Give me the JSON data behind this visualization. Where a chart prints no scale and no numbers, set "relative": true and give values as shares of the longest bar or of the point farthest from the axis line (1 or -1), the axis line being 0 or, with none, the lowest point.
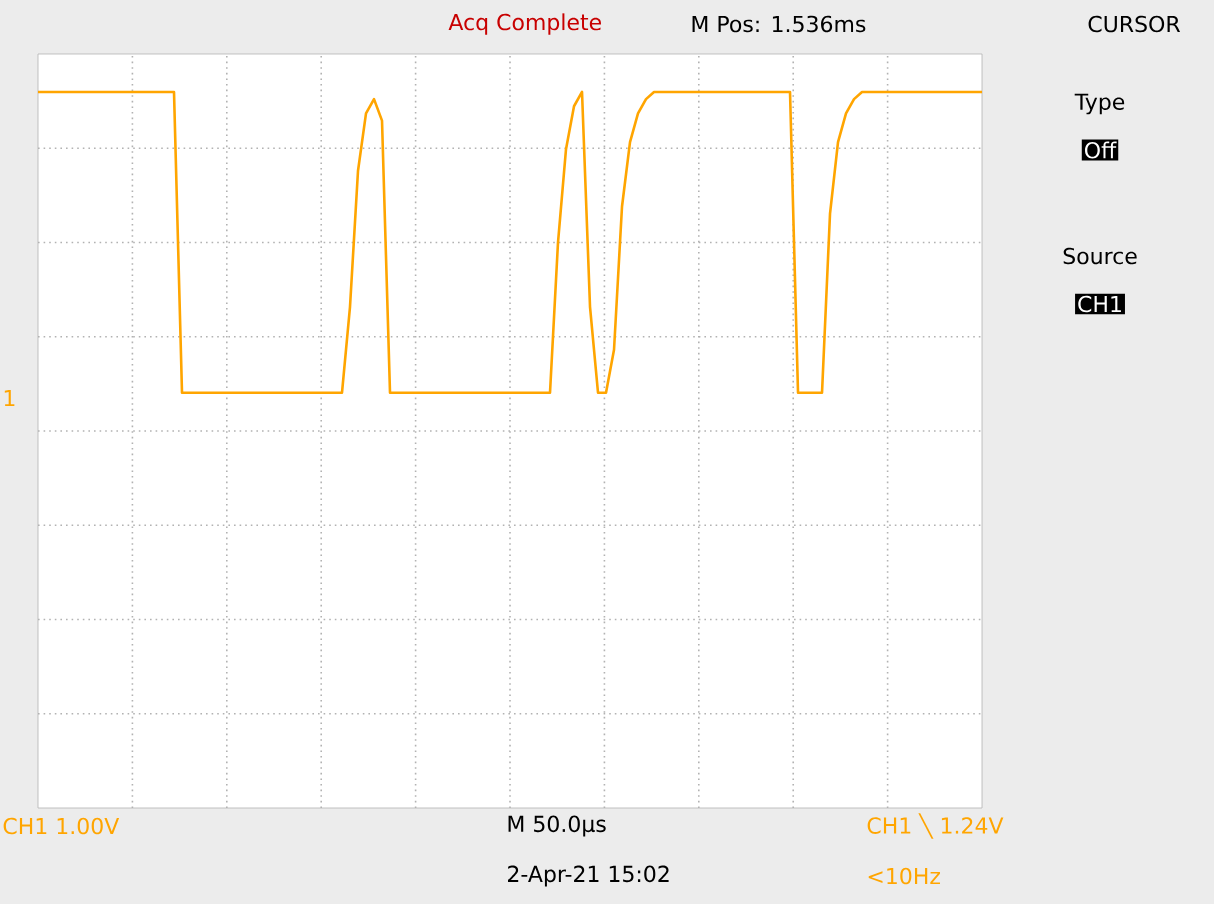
{
  "chart_data": {
    "type": "line",
    "relative": true,
    "grid": true,
    "categories": [
      null,
      null,
      null,
      null,
      null,
      null,
      null,
      null,
      null,
      null,
      null,
      null,
      null,
      null,
      null,
      null,
      null,
      null,
      null,
      null,
      null,
      null,
      null,
      null,
      null,
      null,
      null,
      null,
      null,
      null,
      null,
      null,
      null,
      null,
      null,
      null,
      null,
      null,
      null,
      null,
      null,
      null,
      null,
      null,
      null,
      null,
      null,
      null,
      null,
      null,
      null,
      null,
      null,
      null,
      null,
      null,
      null,
      null,
      null,
      null,
      null,
      null,
      null,
      null,
      null,
      null,
      null,
      null,
      null,
      null,
      null,
      null,
      null,
      null,
      null,
      null,
      null,
      null,
      null,
      null,
      null,
      null,
      null,
      null,
      null,
      null,
      null,
      null,
      null,
      null,
      null,
      null,
      null,
      null,
      null,
      null,
      null,
      null,
      null,
      null,
      null,
      null,
      null,
      null,
      null,
      null,
      null,
      null,
      null,
      null,
      null,
      null,
      null,
      null,
      null,
      null,
      null,
      null,
      null
    ],
    "series": [
      {
        "color": "#ffa500",
        "values": [
          1,
          1,
          1,
          1,
          1,
          1,
          1,
          1,
          1,
          1,
          1,
          1,
          1,
          1,
          1,
          1,
          1,
          1,
          0.58,
          0.58,
          0.58,
          0.58,
          0.58,
          0.58,
          0.58,
          0.58,
          0.58,
          0.58,
          0.58,
          0.58,
          0.58,
          0.58,
          0.58,
          0.58,
          0.58,
          0.58,
          0.58,
          0.58,
          0.58,
          0.7,
          0.89,
          0.97,
          0.99,
          0.96,
          0.58,
          0.58,
          0.58,
          0.58,
          0.58,
          0.58,
          0.58,
          0.58,
          0.58,
          0.58,
          0.58,
          0.58,
          0.58,
          0.58,
          0.58,
          0.58,
          0.58,
          0.58,
          0.58,
          0.58,
          0.58,
          0.79,
          0.92,
          0.98,
          1,
          0.7,
          0.58,
          0.58,
          0.64,
          0.84,
          0.93,
          0.97,
          0.99,
          1,
          1,
          1,
          1,
          1,
          1,
          1,
          1,
          1,
          1,
          1,
          1,
          1,
          1,
          1,
          1,
          1,
          1,
          0.58,
          0.58,
          0.58,
          0.58,
          0.83,
          0.93,
          0.97,
          0.99,
          1,
          1,
          1,
          1,
          1,
          1,
          1,
          1,
          1,
          1,
          1,
          1,
          1,
          1,
          1,
          1
        ]
      }
    ],
    "annotations": [
      "Acq Complete",
      "M Pos: 1.536ms",
      "CURSOR",
      "Type",
      "Off",
      "Source",
      "CH1",
      "CH1  1.00V",
      "M 50.0µs",
      "2-Apr-21 15:02",
      "CH1 ╲ 1.24V",
      "<10Hz",
      "1"
    ]
  }
}
